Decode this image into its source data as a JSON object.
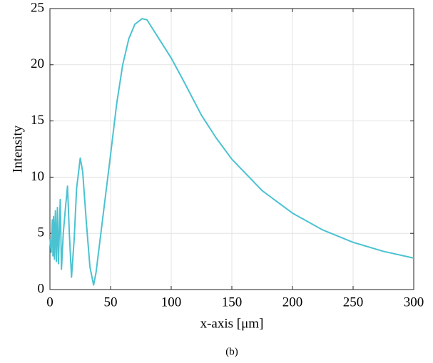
{
  "chart_data": {
    "type": "line",
    "xlabel": "x-axis [μm]",
    "ylabel": "Intensity",
    "caption": "(b)",
    "color": "#4bc2d1",
    "grid": true,
    "xlim": [
      0,
      300
    ],
    "xticks": [
      0,
      50,
      100,
      150,
      200,
      250,
      300
    ],
    "ylim": [
      0,
      25
    ],
    "yticks": [
      0,
      5,
      10,
      15,
      20,
      25
    ],
    "x": [
      0,
      1,
      2,
      2.5,
      3,
      3.7,
      4.5,
      5.3,
      6.2,
      7,
      8.5,
      9.5,
      11,
      13,
      14.5,
      16,
      17.8,
      20,
      22,
      25,
      27,
      30,
      33,
      36,
      38,
      42,
      46,
      50,
      55,
      60,
      65,
      70,
      76,
      80,
      90,
      100,
      110,
      125,
      137,
      150,
      175,
      200,
      225,
      250,
      275,
      300
    ],
    "values": [
      4.5,
      3.3,
      6.2,
      3.0,
      6.5,
      2.7,
      7.0,
      2.5,
      7.3,
      2.3,
      8.0,
      1.8,
      5.0,
      7.5,
      9.2,
      5.0,
      1.1,
      4.5,
      9.0,
      11.7,
      10.5,
      6.0,
      2.0,
      0.4,
      1.5,
      5.0,
      8.5,
      12.0,
      16.5,
      20.0,
      22.3,
      23.6,
      24.1,
      24.0,
      22.3,
      20.6,
      18.6,
      15.5,
      13.5,
      11.6,
      8.8,
      6.8,
      5.3,
      4.2,
      3.4,
      2.8
    ]
  }
}
